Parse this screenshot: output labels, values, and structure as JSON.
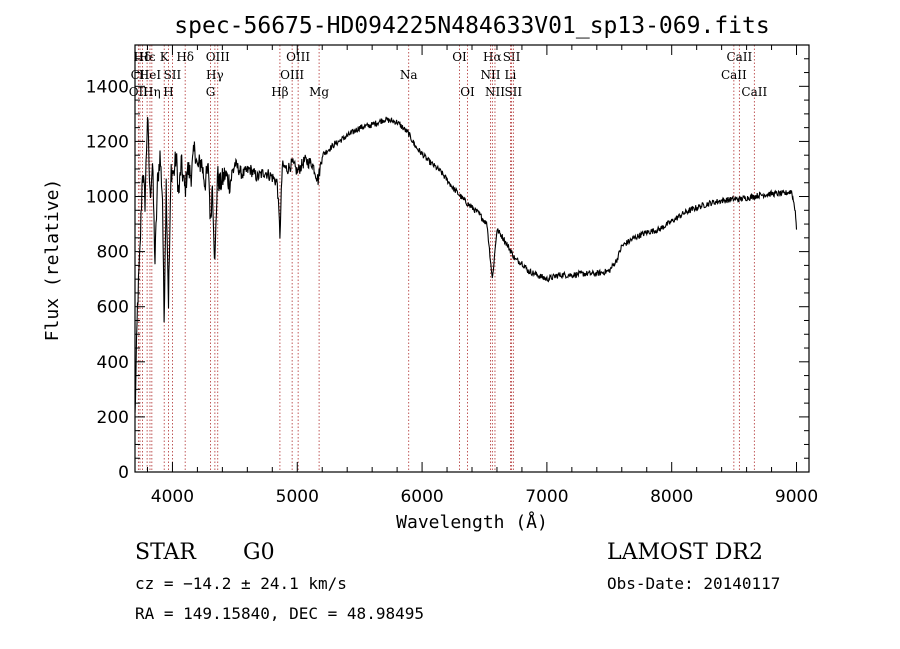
{
  "chart_data": {
    "type": "line",
    "title": "spec-56675-HD094225N484633V01_sp13-069.fits",
    "xlabel": "Wavelength (Å)",
    "ylabel": "Flux (relative)",
    "xlim": [
      3700,
      9100
    ],
    "ylim": [
      0,
      1550
    ],
    "xticks": [
      4000,
      5000,
      6000,
      7000,
      8000,
      9000
    ],
    "yticks": [
      0,
      200,
      400,
      600,
      800,
      1000,
      1200,
      1400
    ],
    "grid": false,
    "series": [
      {
        "x": [
          3700,
          3720,
          3740,
          3760,
          3780,
          3800,
          3820,
          3840,
          3860,
          3880,
          3900,
          3920,
          3933,
          3950,
          3968,
          3990,
          4010,
          4030,
          4050,
          4070,
          4101,
          4120,
          4150,
          4180,
          4200,
          4230,
          4260,
          4290,
          4305,
          4320,
          4340,
          4360,
          4380,
          4420,
          4460,
          4500,
          4560,
          4620,
          4680,
          4740,
          4800,
          4840,
          4861,
          4880,
          4920,
          4960,
          5000,
          5060,
          5120,
          5167,
          5200,
          5300,
          5400,
          5500,
          5600,
          5700,
          5800,
          5890,
          5950,
          6050,
          6150,
          6250,
          6350,
          6450,
          6520,
          6563,
          6600,
          6650,
          6700,
          6750,
          6800,
          6850,
          6900,
          6950,
          7000,
          7100,
          7200,
          7300,
          7400,
          7500,
          7560,
          7600,
          7700,
          7800,
          7900,
          8000,
          8100,
          8200,
          8300,
          8400,
          8498,
          8542,
          8600,
          8662,
          8700,
          8800,
          8900,
          8960,
          8990,
          9000
        ],
        "values": [
          200,
          600,
          800,
          1100,
          980,
          1300,
          1000,
          1120,
          760,
          1050,
          1150,
          1000,
          550,
          1050,
          620,
          1100,
          1080,
          1150,
          1000,
          1120,
          1020,
          1100,
          1080,
          1180,
          1100,
          1130,
          1050,
          1100,
          900,
          1050,
          750,
          1080,
          1040,
          1080,
          1050,
          1120,
          1080,
          1100,
          1070,
          1090,
          1070,
          1050,
          860,
          1110,
          1100,
          1120,
          1090,
          1130,
          1120,
          1060,
          1150,
          1190,
          1220,
          1250,
          1260,
          1280,
          1270,
          1230,
          1180,
          1130,
          1090,
          1030,
          980,
          940,
          900,
          700,
          880,
          850,
          810,
          770,
          760,
          730,
          720,
          710,
          700,
          715,
          715,
          720,
          720,
          730,
          770,
          820,
          850,
          870,
          880,
          910,
          940,
          960,
          975,
          985,
          990,
          990,
          995,
          1000,
          1005,
          1010,
          1010,
          1020,
          950,
          880
        ]
      }
    ],
    "line_markers": [
      {
        "name": "Hδ",
        "x": 3760,
        "row": 0
      },
      {
        "name": "CII",
        "x": 3740,
        "row": 1
      },
      {
        "name": "OII",
        "x": 3727,
        "row": 2
      },
      {
        "name": "Hε",
        "x": 3797,
        "row": 0
      },
      {
        "name": "HeI",
        "x": 3820,
        "row": 1
      },
      {
        "name": "Hη",
        "x": 3835,
        "row": 2
      },
      {
        "name": "K",
        "x": 3934,
        "row": 0
      },
      {
        "name": "SII",
        "x": 4000,
        "row": 1
      },
      {
        "name": "H",
        "x": 3968,
        "row": 2
      },
      {
        "name": "Hδ",
        "x": 4102,
        "row": 0
      },
      {
        "name": "OIII",
        "x": 4363,
        "row": 0
      },
      {
        "name": "Hγ",
        "x": 4340,
        "row": 1
      },
      {
        "name": "G",
        "x": 4305,
        "row": 2
      },
      {
        "name": "Hβ",
        "x": 4861,
        "row": 2
      },
      {
        "name": "OIII",
        "x": 5007,
        "row": 0
      },
      {
        "name": "OIII",
        "x": 4959,
        "row": 1
      },
      {
        "name": "Mg",
        "x": 5175,
        "row": 2
      },
      {
        "name": "Na",
        "x": 5893,
        "row": 1
      },
      {
        "name": "OI",
        "x": 6300,
        "row": 0
      },
      {
        "name": "OI",
        "x": 6364,
        "row": 2
      },
      {
        "name": "Hα",
        "x": 6563,
        "row": 0
      },
      {
        "name": "NII",
        "x": 6548,
        "row": 1
      },
      {
        "name": "NII",
        "x": 6584,
        "row": 2
      },
      {
        "name": "SII",
        "x": 6717,
        "row": 0
      },
      {
        "name": "Li",
        "x": 6708,
        "row": 1
      },
      {
        "name": "SII",
        "x": 6731,
        "row": 2
      },
      {
        "name": "CaII",
        "x": 8542,
        "row": 0
      },
      {
        "name": "CaII",
        "x": 8498,
        "row": 1
      },
      {
        "name": "CaII",
        "x": 8662,
        "row": 2
      }
    ]
  },
  "info": {
    "object_type": "STAR",
    "subclass": "G0",
    "survey": "LAMOST DR2",
    "cz": "cz = −14.2 ± 24.1 km/s",
    "obs_date": "Obs-Date: 20140117",
    "coords": "RA = 149.15840, DEC =  48.98495"
  }
}
